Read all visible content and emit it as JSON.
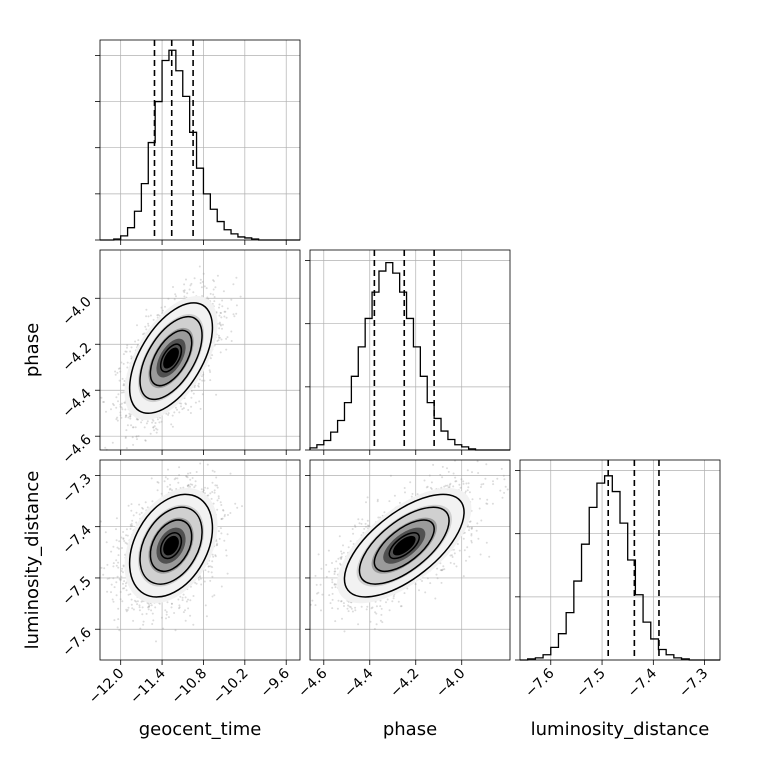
{
  "chart_data": {
    "type": "corner",
    "parameters": [
      {
        "name": "geocent_time",
        "label": "geocent_time",
        "range": [
          -12.3,
          -9.4
        ],
        "ticks": [
          -12.0,
          -11.4,
          -10.8,
          -10.2,
          -9.6
        ],
        "tick_labels": [
          "−12.0",
          "−11.4",
          "−10.8",
          "−10.2",
          "−9.6"
        ],
        "quantiles": [
          -11.51,
          -11.26,
          -10.95
        ],
        "hist_bins": [
          -12.3,
          -12.2,
          -12.1,
          -12.0,
          -11.9,
          -11.8,
          -11.7,
          -11.6,
          -11.5,
          -11.4,
          -11.3,
          -11.2,
          -11.1,
          -11.0,
          -10.9,
          -10.8,
          -10.7,
          -10.6,
          -10.5,
          -10.4,
          -10.3,
          -10.2,
          -10.1,
          -10.0,
          -9.9,
          -9.8,
          -9.7,
          -9.6,
          -9.5,
          -9.4
        ],
        "hist_counts": [
          0,
          0,
          1,
          4,
          12,
          28,
          55,
          95,
          135,
          175,
          185,
          165,
          140,
          105,
          70,
          45,
          30,
          18,
          10,
          6,
          3,
          2,
          1,
          0,
          0,
          0,
          0,
          0,
          0
        ],
        "hist_ymax": 195,
        "hist_yticks": [
          0,
          45,
          90,
          135,
          180
        ]
      },
      {
        "name": "phase",
        "label": "phase",
        "range": [
          -4.66,
          -3.79
        ],
        "ticks": [
          -4.6,
          -4.4,
          -4.2,
          -4.0
        ],
        "tick_labels": [
          "−4.6",
          "−4.4",
          "−4.2",
          "−4.0"
        ],
        "quantiles": [
          -4.38,
          -4.25,
          -4.12
        ],
        "hist_bins": [
          -4.66,
          -4.63,
          -4.6,
          -4.57,
          -4.54,
          -4.51,
          -4.48,
          -4.45,
          -4.42,
          -4.39,
          -4.36,
          -4.33,
          -4.3,
          -4.27,
          -4.24,
          -4.21,
          -4.18,
          -4.15,
          -4.12,
          -4.09,
          -4.06,
          -4.03,
          -4.0,
          -3.97,
          -3.94,
          -3.91,
          -3.88,
          -3.85,
          -3.82,
          -3.79
        ],
        "hist_counts": [
          2,
          5,
          9,
          17,
          28,
          45,
          70,
          98,
          125,
          150,
          170,
          178,
          168,
          150,
          125,
          98,
          70,
          45,
          30,
          18,
          10,
          5,
          3,
          1,
          0,
          0,
          0,
          0,
          0
        ],
        "hist_ymax": 190,
        "hist_yticks": [
          0,
          60,
          120,
          180
        ]
      },
      {
        "name": "luminosity_distance",
        "label": "luminosity_distance",
        "range": [
          -7.66,
          -7.27
        ],
        "ticks": [
          -7.6,
          -7.5,
          -7.4,
          -7.3
        ],
        "tick_labels": [
          "−7.6",
          "−7.5",
          "−7.4",
          "−7.3"
        ],
        "quantiles": [
          -7.488,
          -7.437,
          -7.389
        ],
        "hist_bins": [
          -7.66,
          -7.645,
          -7.63,
          -7.615,
          -7.6,
          -7.585,
          -7.57,
          -7.555,
          -7.54,
          -7.525,
          -7.51,
          -7.495,
          -7.48,
          -7.465,
          -7.45,
          -7.435,
          -7.42,
          -7.405,
          -7.39,
          -7.375,
          -7.36,
          -7.345,
          -7.33,
          -7.315,
          -7.3,
          -7.285,
          -7.27
        ],
        "hist_counts": [
          0,
          1,
          2,
          5,
          12,
          25,
          45,
          75,
          110,
          145,
          168,
          175,
          160,
          130,
          95,
          62,
          36,
          20,
          10,
          5,
          2,
          1,
          0,
          0,
          0,
          0
        ],
        "hist_ymax": 190,
        "hist_yticks": [
          0,
          60,
          120,
          180
        ]
      }
    ],
    "pairs": [
      {
        "x": "geocent_time",
        "y": "phase",
        "center": [
          -11.27,
          -4.26
        ],
        "sd": [
          0.3,
          0.12
        ],
        "rho": 0.55
      },
      {
        "x": "geocent_time",
        "y": "luminosity_distance",
        "center": [
          -11.27,
          -7.437
        ],
        "sd": [
          0.3,
          0.05
        ],
        "rho": 0.35
      },
      {
        "x": "phase",
        "y": "luminosity_distance",
        "center": [
          -4.25,
          -7.437
        ],
        "sd": [
          0.13,
          0.05
        ],
        "rho": 0.65
      }
    ],
    "contour_levels": [
      0.118,
      0.393,
      0.675,
      0.865
    ],
    "grid": true,
    "scatter_color": "#9a9a9a",
    "line_color": "#000000"
  }
}
